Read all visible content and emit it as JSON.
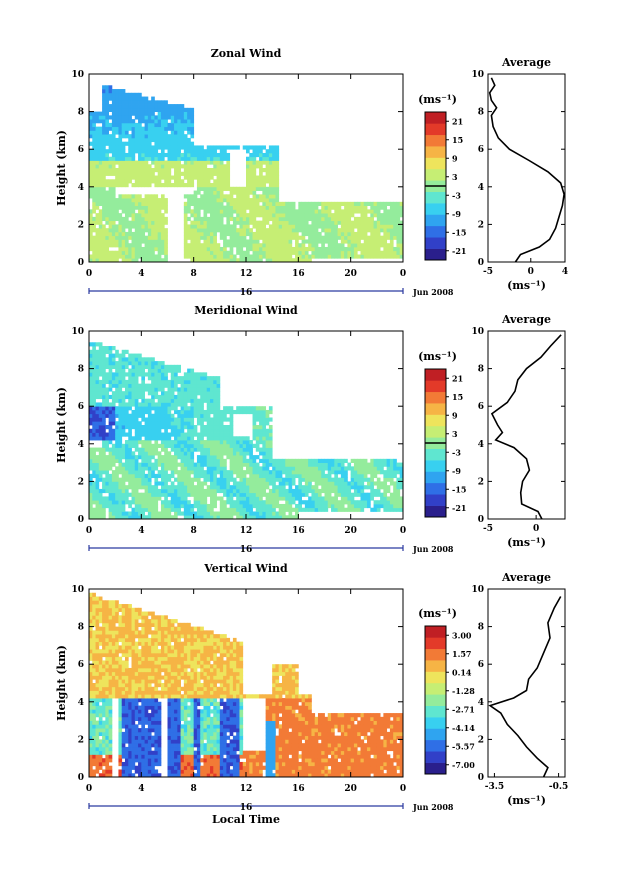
{
  "colors": {
    "scale": [
      "#2a1f8c",
      "#3140c8",
      "#2f6fe6",
      "#2fa4f0",
      "#38d0f0",
      "#5fe6d0",
      "#94ec9c",
      "#c6ee74",
      "#eee45c",
      "#f6b445",
      "#f27a36",
      "#e33a29",
      "#c01f24"
    ],
    "frame": "#000000",
    "axis_line": "#2b3aa0"
  },
  "chart_data": [
    {
      "type": "heatmap",
      "title": "Zonal Wind",
      "ylabel": "Height (km)",
      "x_ticks": [
        "0",
        "4",
        "8",
        "12",
        "16",
        "20",
        "0"
      ],
      "y_ticks": [
        "0",
        "2",
        "4",
        "6",
        "8",
        "10"
      ],
      "date_label": "16",
      "month_label": "Jun 2008",
      "xlim": [
        0,
        24
      ],
      "ylim": [
        0,
        10
      ],
      "colorbar": {
        "unit": "(ms⁻¹)",
        "labels": [
          "21",
          "15",
          "9",
          "3",
          "-3",
          "-9",
          "-15",
          "-21"
        ],
        "range": [
          -24,
          24
        ],
        "zero_line": 0
      },
      "average": {
        "title": "Average",
        "xlabel": "(ms⁻¹)",
        "x_ticks": [
          "-5",
          "0",
          "4"
        ],
        "x_tick_values": [
          -5,
          0,
          4
        ],
        "xlim": [
          -5,
          4
        ],
        "y_ticks": [
          "0",
          "2",
          "4",
          "6",
          "8",
          "10"
        ],
        "ylim": [
          0,
          10
        ],
        "profile": [
          {
            "h": 0.0,
            "v": -1.8
          },
          {
            "h": 0.4,
            "v": -1.2
          },
          {
            "h": 0.8,
            "v": 1.0
          },
          {
            "h": 1.2,
            "v": 2.2
          },
          {
            "h": 1.8,
            "v": 2.9
          },
          {
            "h": 2.4,
            "v": 3.3
          },
          {
            "h": 3.0,
            "v": 3.7
          },
          {
            "h": 3.6,
            "v": 3.9
          },
          {
            "h": 4.2,
            "v": 3.5
          },
          {
            "h": 4.8,
            "v": 2.0
          },
          {
            "h": 5.4,
            "v": -0.2
          },
          {
            "h": 6.0,
            "v": -2.5
          },
          {
            "h": 6.6,
            "v": -3.8
          },
          {
            "h": 7.2,
            "v": -4.4
          },
          {
            "h": 7.8,
            "v": -4.6
          },
          {
            "h": 8.2,
            "v": -4.0
          },
          {
            "h": 8.6,
            "v": -4.6
          },
          {
            "h": 9.0,
            "v": -4.8
          },
          {
            "h": 9.4,
            "v": -4.2
          },
          {
            "h": 9.8,
            "v": -4.6
          }
        ]
      }
    },
    {
      "type": "heatmap",
      "title": "Meridional Wind",
      "ylabel": "Height (km)",
      "x_ticks": [
        "0",
        "4",
        "8",
        "12",
        "16",
        "20",
        "0"
      ],
      "y_ticks": [
        "0",
        "2",
        "4",
        "6",
        "8",
        "10"
      ],
      "date_label": "16",
      "month_label": "Jun 2008",
      "xlim": [
        0,
        24
      ],
      "ylim": [
        0,
        10
      ],
      "colorbar": {
        "unit": "(ms⁻¹)",
        "labels": [
          "21",
          "15",
          "9",
          "3",
          "-3",
          "-9",
          "-15",
          "-21"
        ],
        "range": [
          -24,
          24
        ],
        "zero_line": 0
      },
      "average": {
        "title": "Average",
        "xlabel": "(ms⁻¹)",
        "x_ticks": [
          "-5",
          "0"
        ],
        "x_tick_values": [
          -5,
          0
        ],
        "xlim": [
          -5,
          3
        ],
        "y_ticks": [
          "0",
          "2",
          "4",
          "6",
          "8",
          "10"
        ],
        "ylim": [
          0,
          10
        ],
        "profile": [
          {
            "h": 0.0,
            "v": 0.6
          },
          {
            "h": 0.4,
            "v": 0.2
          },
          {
            "h": 0.8,
            "v": -1.5
          },
          {
            "h": 1.4,
            "v": -1.6
          },
          {
            "h": 2.0,
            "v": -1.4
          },
          {
            "h": 2.6,
            "v": -0.7
          },
          {
            "h": 3.2,
            "v": -1.0
          },
          {
            "h": 3.8,
            "v": -2.3
          },
          {
            "h": 4.2,
            "v": -4.2
          },
          {
            "h": 4.6,
            "v": -3.5
          },
          {
            "h": 5.0,
            "v": -4.0
          },
          {
            "h": 5.6,
            "v": -4.6
          },
          {
            "h": 6.2,
            "v": -3.0
          },
          {
            "h": 6.8,
            "v": -2.2
          },
          {
            "h": 7.4,
            "v": -1.9
          },
          {
            "h": 8.0,
            "v": -1.0
          },
          {
            "h": 8.6,
            "v": 0.5
          },
          {
            "h": 9.2,
            "v": 1.5
          },
          {
            "h": 9.8,
            "v": 2.6
          }
        ]
      }
    },
    {
      "type": "heatmap",
      "title": "Vertical Wind",
      "ylabel": "Height (km)",
      "xlabel": "Local Time",
      "x_ticks": [
        "0",
        "4",
        "8",
        "12",
        "16",
        "20",
        "0"
      ],
      "y_ticks": [
        "0",
        "2",
        "4",
        "6",
        "8",
        "10"
      ],
      "date_label": "16",
      "month_label": "Jun 2008",
      "xlim": [
        0,
        24
      ],
      "ylim": [
        0,
        10
      ],
      "colorbar": {
        "unit": "(ms⁻¹)",
        "labels": [
          "3.00",
          "1.57",
          "0.14",
          "-1.28",
          "-2.71",
          "-4.14",
          "-5.57",
          "-7.00"
        ],
        "range": [
          -7.7,
          3.7
        ]
      },
      "average": {
        "title": "Average",
        "xlabel": "(ms⁻¹)",
        "x_ticks": [
          "-3.5",
          "-0.5"
        ],
        "x_tick_values": [
          -3.5,
          -0.5
        ],
        "xlim": [
          -3.8,
          -0.2
        ],
        "y_ticks": [
          "0",
          "2",
          "4",
          "6",
          "8",
          "10"
        ],
        "ylim": [
          0,
          10
        ],
        "profile": [
          {
            "h": 0.0,
            "v": -1.2
          },
          {
            "h": 0.5,
            "v": -1.0
          },
          {
            "h": 1.0,
            "v": -1.5
          },
          {
            "h": 1.6,
            "v": -2.0
          },
          {
            "h": 2.2,
            "v": -2.4
          },
          {
            "h": 2.8,
            "v": -2.9
          },
          {
            "h": 3.4,
            "v": -3.2
          },
          {
            "h": 3.8,
            "v": -3.7
          },
          {
            "h": 4.2,
            "v": -2.6
          },
          {
            "h": 4.6,
            "v": -2.0
          },
          {
            "h": 5.2,
            "v": -1.9
          },
          {
            "h": 5.8,
            "v": -1.5
          },
          {
            "h": 6.6,
            "v": -1.2
          },
          {
            "h": 7.4,
            "v": -0.9
          },
          {
            "h": 8.2,
            "v": -1.0
          },
          {
            "h": 9.0,
            "v": -0.7
          },
          {
            "h": 9.6,
            "v": -0.4
          }
        ]
      }
    }
  ]
}
